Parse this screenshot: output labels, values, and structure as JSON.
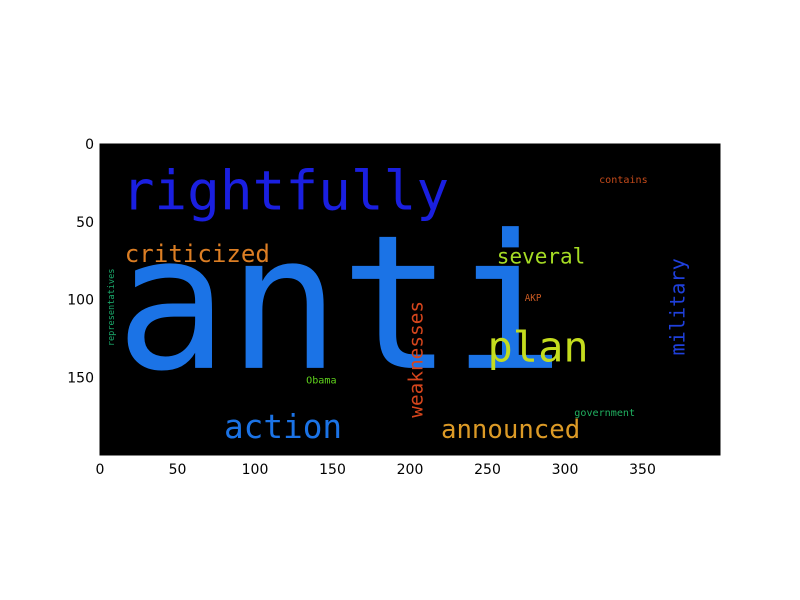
{
  "chart_data": {
    "type": "wordcloud",
    "background": "#000000",
    "xlim": [
      0,
      400
    ],
    "ylim": [
      200,
      0
    ],
    "x_ticks": [
      0,
      50,
      100,
      150,
      200,
      250,
      300,
      350
    ],
    "y_ticks": [
      0,
      50,
      100,
      150
    ],
    "words": [
      {
        "text": "anti",
        "x": 10,
        "y": 144,
        "size": 120,
        "color": "#1b73e6",
        "rotation": 0
      },
      {
        "text": "rightfully",
        "x": 14,
        "y": 42,
        "size": 35,
        "color": "#1a1fe0",
        "rotation": 0
      },
      {
        "text": "criticized",
        "x": 16,
        "y": 76,
        "size": 15.5,
        "color": "#dc7e24",
        "rotation": 0
      },
      {
        "text": "action",
        "x": 80,
        "y": 189,
        "size": 21,
        "color": "#1b73e6",
        "rotation": 0
      },
      {
        "text": "announced",
        "x": 220,
        "y": 189,
        "size": 16.5,
        "color": "#dc9a26",
        "rotation": 0
      },
      {
        "text": "plan",
        "x": 250,
        "y": 140,
        "size": 27,
        "color": "#c4dc1e",
        "rotation": 0
      },
      {
        "text": "several",
        "x": 256,
        "y": 77,
        "size": 13.5,
        "color": "#a6dc24",
        "rotation": 0
      },
      {
        "text": "weaknesses",
        "x": 208,
        "y": 176,
        "size": 12.5,
        "color": "#d6451c",
        "rotation": -90
      },
      {
        "text": "military",
        "x": 377,
        "y": 136,
        "size": 13,
        "color": "#1f40dc",
        "rotation": -90
      },
      {
        "text": "representatives",
        "x": 9,
        "y": 130,
        "size": 5.5,
        "color": "#1aa86a",
        "rotation": -90
      },
      {
        "text": "contains",
        "x": 322,
        "y": 25,
        "size": 6.5,
        "color": "#c44a1a",
        "rotation": 0
      },
      {
        "text": "AKP",
        "x": 274,
        "y": 101,
        "size": 6,
        "color": "#c85a22",
        "rotation": 0
      },
      {
        "text": "Obama",
        "x": 133,
        "y": 154,
        "size": 6.5,
        "color": "#5fd21c",
        "rotation": 0
      },
      {
        "text": "government",
        "x": 306,
        "y": 175,
        "size": 6.5,
        "color": "#20b060",
        "rotation": 0
      }
    ]
  }
}
